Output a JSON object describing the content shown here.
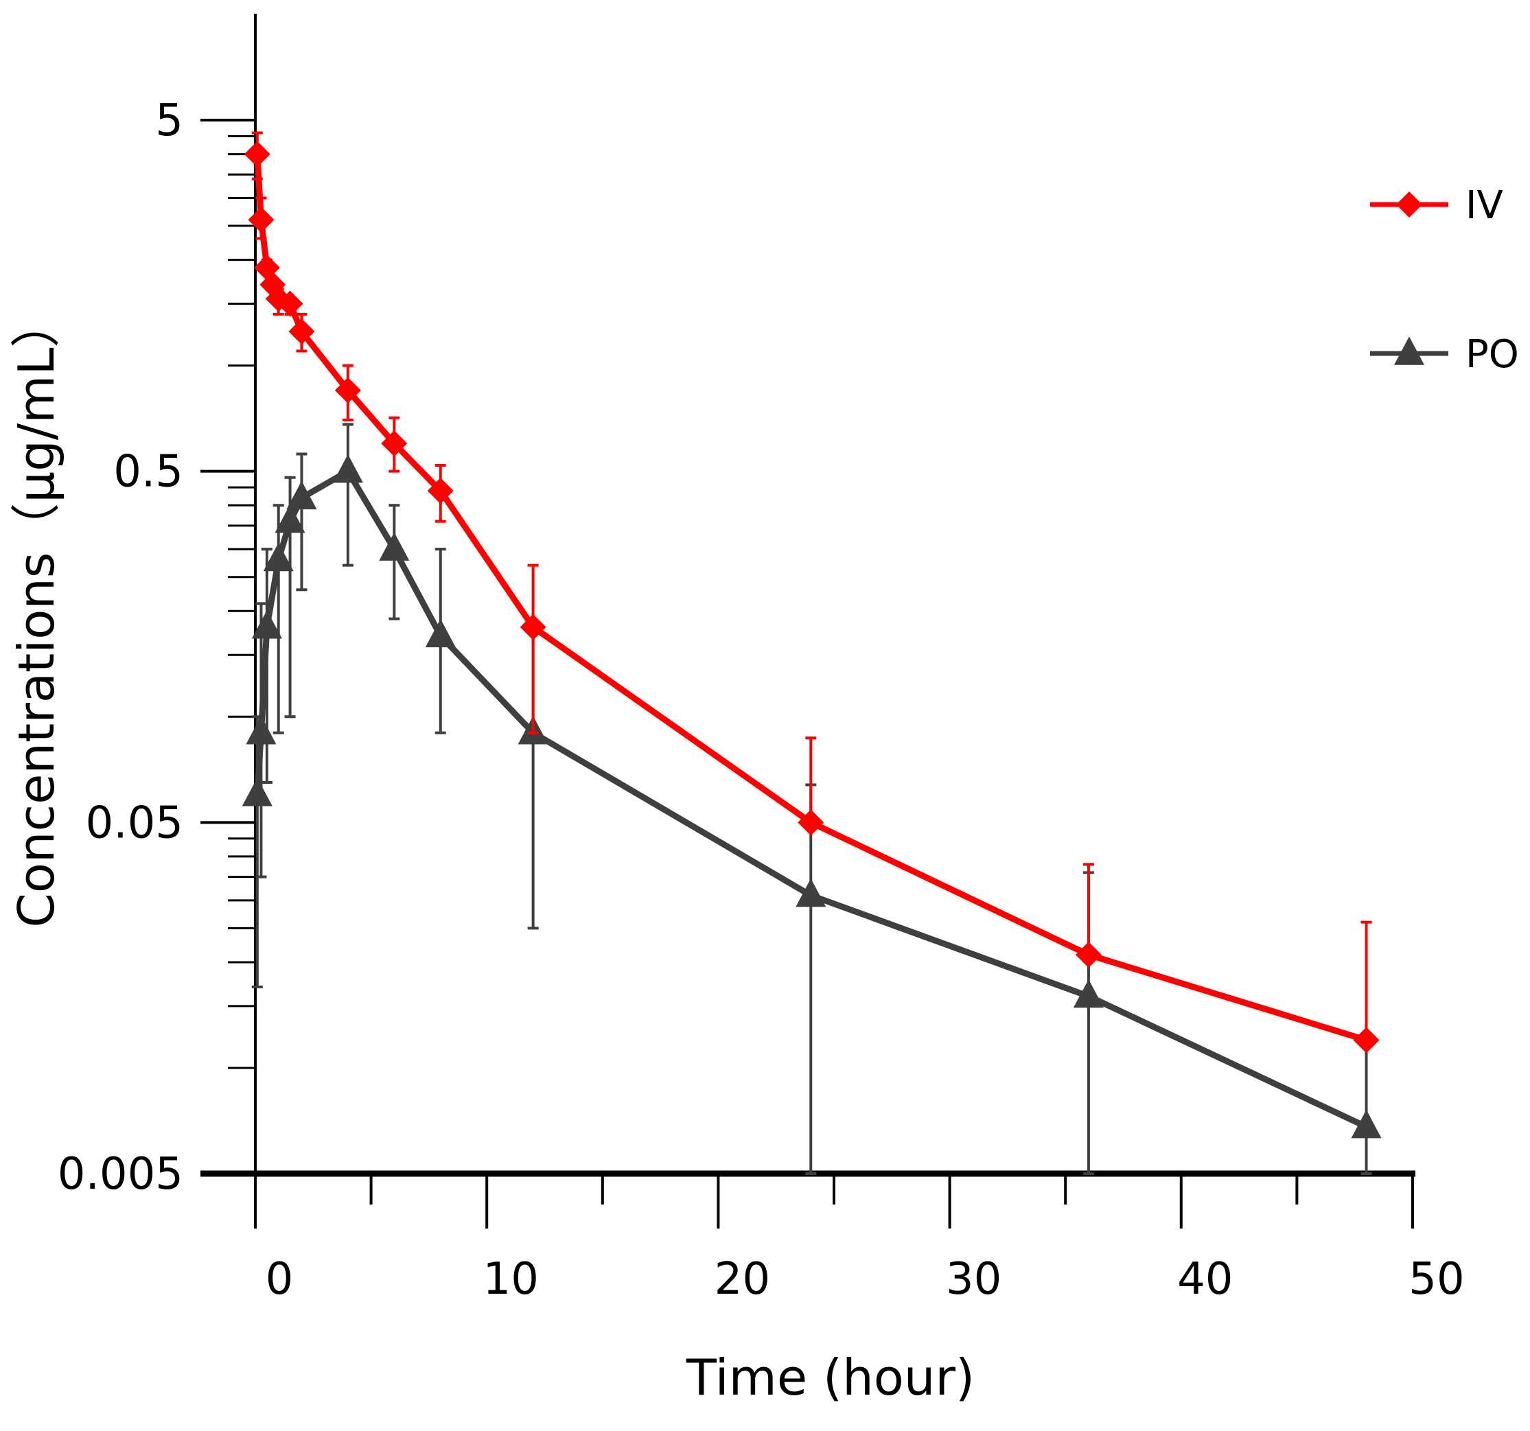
{
  "chart_data": {
    "type": "line",
    "title": "",
    "xlabel": "Time (hour)",
    "ylabel": "Concentrations（μg/mL）",
    "xlim": [
      0,
      50
    ],
    "ylim": [
      0.005,
      10
    ],
    "yscale": "log",
    "x_ticks": [
      0,
      10,
      20,
      30,
      40,
      50
    ],
    "x_tick_labels": [
      "0",
      "10",
      "20",
      "30",
      "40",
      "50"
    ],
    "y_ticks": [
      0.005,
      0.05,
      0.5,
      5
    ],
    "y_tick_labels": [
      "0.005",
      "0.05",
      "0.5",
      "5"
    ],
    "legend_position": "top-right",
    "series": [
      {
        "name": "IV",
        "color": "#ff0000",
        "marker": "diamond",
        "x": [
          0.083,
          0.25,
          0.5,
          0.75,
          1,
          1.5,
          2,
          4,
          6,
          8,
          12,
          24,
          36,
          48
        ],
        "y": [
          4.0,
          2.6,
          1.9,
          1.7,
          1.55,
          1.5,
          1.25,
          0.85,
          0.6,
          0.44,
          0.18,
          0.05,
          0.021,
          0.012
        ],
        "err_upper": [
          4.6,
          3.0,
          2.0,
          1.9,
          1.65,
          1.55,
          1.4,
          1.0,
          0.71,
          0.52,
          0.27,
          0.087,
          0.038,
          0.026
        ],
        "err_lower": [
          3.4,
          2.3,
          1.85,
          1.55,
          1.4,
          1.4,
          1.1,
          0.7,
          0.5,
          0.36,
          0.09,
          0.05,
          0.021,
          0.012
        ]
      },
      {
        "name": "PO",
        "color": "#3f3f3f",
        "marker": "triangle",
        "x": [
          0.083,
          0.25,
          0.5,
          1,
          1.5,
          2,
          4,
          6,
          8,
          12,
          24,
          36,
          48
        ],
        "y": [
          0.06,
          0.09,
          0.18,
          0.28,
          0.36,
          0.42,
          0.5,
          0.3,
          0.17,
          0.09,
          0.031,
          0.016,
          0.0068
        ],
        "err_upper": [
          0.1,
          0.21,
          0.3,
          0.4,
          0.48,
          0.56,
          0.68,
          0.4,
          0.3,
          0.18,
          0.064,
          0.036,
          0.012
        ],
        "err_lower": [
          0.017,
          0.035,
          0.065,
          0.09,
          0.1,
          0.23,
          0.27,
          0.19,
          0.09,
          0.025,
          0.005,
          0.005,
          0.005
        ]
      }
    ]
  }
}
